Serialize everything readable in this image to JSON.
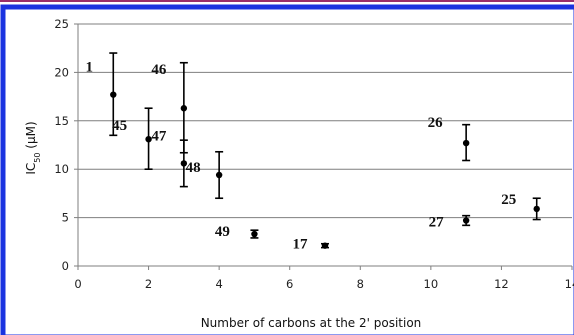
{
  "chart_data": {
    "type": "scatter",
    "title": "",
    "xlabel": "Number of carbons at the 2' position",
    "ylabel": "IC50 (μM)",
    "ylabel_parts": {
      "main": "IC",
      "sub": "50",
      "unit": " (μM)"
    },
    "xlim": [
      0,
      14
    ],
    "ylim": [
      0,
      25
    ],
    "x_ticks": [
      0,
      2,
      4,
      6,
      8,
      10,
      12,
      14
    ],
    "y_ticks": [
      0,
      5,
      10,
      15,
      20,
      25
    ],
    "grid": "horizontal",
    "legend": "none",
    "points": [
      {
        "label": "1",
        "x": 1,
        "y": 17.7,
        "err_low": 13.5,
        "err_high": 22.0
      },
      {
        "label": "45",
        "x": 2,
        "y": 13.1,
        "err_low": 10.0,
        "err_high": 16.3
      },
      {
        "label": "46",
        "x": 3,
        "y": 16.3,
        "err_low": 11.7,
        "err_high": 21.0
      },
      {
        "label": "47",
        "x": 3,
        "y": 10.6,
        "err_low": 8.2,
        "err_high": 13.0
      },
      {
        "label": "48",
        "x": 4,
        "y": 9.4,
        "err_low": 7.0,
        "err_high": 11.8
      },
      {
        "label": "49",
        "x": 5,
        "y": 3.3,
        "err_low": 2.9,
        "err_high": 3.7
      },
      {
        "label": "17",
        "x": 7,
        "y": 2.1,
        "err_low": 1.9,
        "err_high": 2.3
      },
      {
        "label": "26",
        "x": 11,
        "y": 12.7,
        "err_low": 10.9,
        "err_high": 14.6
      },
      {
        "label": "27",
        "x": 11,
        "y": 4.7,
        "err_low": 4.2,
        "err_high": 5.2
      },
      {
        "label": "25",
        "x": 13,
        "y": 5.9,
        "err_low": 4.8,
        "err_high": 7.0
      }
    ],
    "colors": {
      "frame": "#1a33e0",
      "top_stripe": "#9a2f6a",
      "grid": "#7f7f7f",
      "axis": "#7f7f7f",
      "marker": "#000000"
    }
  }
}
